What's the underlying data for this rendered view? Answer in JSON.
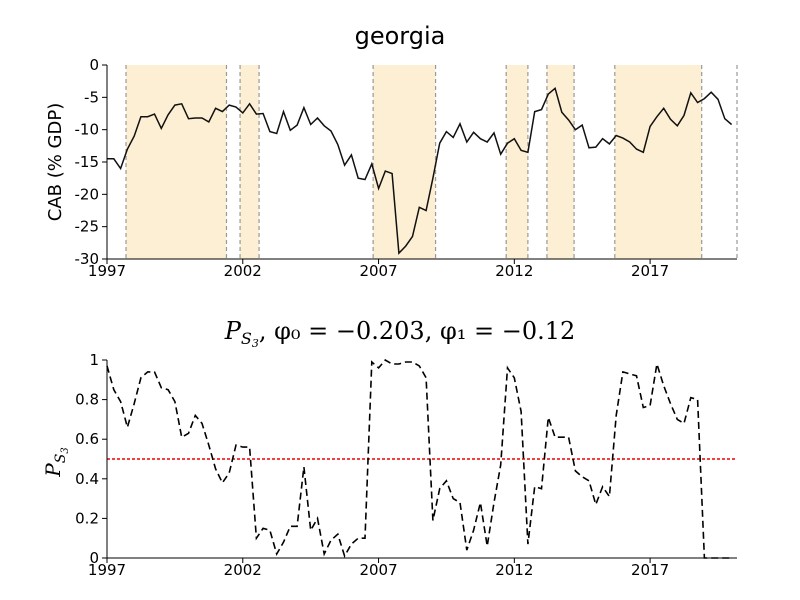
{
  "charts": [
    {
      "title": "georgia",
      "ylabel": "CAB (% GDP)",
      "type": "line",
      "xlim": [
        1997.0,
        2020.2
      ],
      "ylim": [
        -30,
        0
      ],
      "xticks": [
        1997,
        2002,
        2007,
        2012,
        2017
      ],
      "yticks": [
        0,
        -5,
        -10,
        -15,
        -20,
        -25,
        -30
      ],
      "line_color": "#111111",
      "shade_color": "#fdefd3",
      "shaded_regions": [
        [
          1997.7,
          2001.4
        ],
        [
          2001.9,
          2002.6
        ],
        [
          2006.8,
          2009.1
        ],
        [
          2011.7,
          2012.5
        ],
        [
          2013.2,
          2014.2
        ],
        [
          2015.7,
          2018.9
        ]
      ],
      "series": [
        {
          "x": [
            1997.0,
            1997.25,
            1997.5,
            1997.75,
            1998.0,
            1998.25,
            1998.5,
            1998.75,
            1999.0,
            1999.25,
            1999.5,
            1999.75,
            2000.0,
            2000.25,
            2000.5,
            2000.75,
            2001.0,
            2001.25,
            2001.5,
            2001.75,
            2002.0,
            2002.25,
            2002.5,
            2002.75,
            2003.0,
            2003.25,
            2003.5,
            2003.75,
            2004.0,
            2004.25,
            2004.5,
            2004.75,
            2005.0,
            2005.25,
            2005.5,
            2005.75,
            2006.0,
            2006.25,
            2006.5,
            2006.75,
            2007.0,
            2007.25,
            2007.5,
            2007.75,
            2008.0,
            2008.25,
            2008.5,
            2008.75,
            2009.0,
            2009.25,
            2009.5,
            2009.75,
            2010.0,
            2010.25,
            2010.5,
            2010.75,
            2011.0,
            2011.25,
            2011.5,
            2011.75,
            2012.0,
            2012.25,
            2012.5,
            2012.75,
            2013.0,
            2013.25,
            2013.5,
            2013.75,
            2014.0,
            2014.25,
            2014.5,
            2014.75,
            2015.0,
            2015.25,
            2015.5,
            2015.75,
            2016.0,
            2016.25,
            2016.5,
            2016.75,
            2017.0,
            2017.25,
            2017.5,
            2017.75,
            2018.0,
            2018.25,
            2018.5,
            2018.75,
            2019.0,
            2019.25,
            2019.5,
            2019.75,
            2020.0
          ],
          "y": [
            -14.5,
            -14.5,
            -16.0,
            -13.0,
            -11.0,
            -8.0,
            -8.0,
            -7.6,
            -9.8,
            -7.7,
            -6.2,
            -6.0,
            -8.3,
            -8.2,
            -8.2,
            -8.8,
            -6.7,
            -7.2,
            -6.2,
            -6.5,
            -7.4,
            -6.0,
            -7.6,
            -7.5,
            -10.3,
            -10.6,
            -7.2,
            -10.1,
            -9.3,
            -6.6,
            -9.2,
            -8.2,
            -9.4,
            -10.2,
            -12.3,
            -15.5,
            -13.9,
            -17.5,
            -17.7,
            -15.3,
            -19.1,
            -16.4,
            -16.8,
            -29.1,
            -28.0,
            -26.5,
            -22.0,
            -22.5,
            -17.5,
            -12.1,
            -10.3,
            -11.2,
            -9.1,
            -11.9,
            -10.4,
            -11.4,
            -11.9,
            -10.5,
            -13.8,
            -12.1,
            -11.4,
            -13.2,
            -13.5,
            -7.2,
            -6.9,
            -4.5,
            -3.6,
            -7.3,
            -8.5,
            -10.0,
            -9.3,
            -12.8,
            -12.7,
            -11.4,
            -12.2,
            -10.9,
            -11.3,
            -11.9,
            -13.0,
            -13.5,
            -9.5,
            -8.0,
            -6.7,
            -8.4,
            -9.4,
            -7.8,
            -4.3,
            -5.8,
            -5.2,
            -4.2,
            -5.3,
            -8.3,
            -9.2
          ]
        }
      ]
    },
    {
      "title_symbol": "P",
      "title_sub": "S",
      "title_subsub": "3",
      "title_rest": ", φ₀ = −0.203, φ₁ = −0.12",
      "ylabel_symbol": "P",
      "ylabel_sub": "S",
      "ylabel_subsub": "3",
      "type": "line",
      "xlim": [
        1997.0,
        2020.2
      ],
      "ylim": [
        0,
        1
      ],
      "xticks": [
        1997,
        2002,
        2007,
        2012,
        2017
      ],
      "yticks": [
        0,
        0.2,
        0.4,
        0.6,
        0.8,
        1
      ],
      "threshold": 0.5,
      "threshold_color": "#ee0000",
      "line_color": "#000000",
      "series": [
        {
          "x": [
            1997.0,
            1997.25,
            1997.5,
            1997.75,
            1998.0,
            1998.25,
            1998.5,
            1998.75,
            1999.0,
            1999.25,
            1999.5,
            1999.75,
            2000.0,
            2000.25,
            2000.5,
            2000.75,
            2001.0,
            2001.25,
            2001.5,
            2001.75,
            2002.0,
            2002.25,
            2002.5,
            2002.75,
            2003.0,
            2003.25,
            2003.5,
            2003.75,
            2004.0,
            2004.25,
            2004.5,
            2004.75,
            2005.0,
            2005.25,
            2005.5,
            2005.75,
            2006.0,
            2006.25,
            2006.5,
            2006.75,
            2007.0,
            2007.25,
            2007.5,
            2007.75,
            2008.0,
            2008.25,
            2008.5,
            2008.75,
            2009.0,
            2009.25,
            2009.5,
            2009.75,
            2010.0,
            2010.25,
            2010.5,
            2010.75,
            2011.0,
            2011.25,
            2011.5,
            2011.75,
            2012.0,
            2012.25,
            2012.5,
            2012.75,
            2013.0,
            2013.25,
            2013.5,
            2013.75,
            2014.0,
            2014.25,
            2014.5,
            2014.75,
            2015.0,
            2015.25,
            2015.5,
            2015.75,
            2016.0,
            2016.25,
            2016.5,
            2016.75,
            2017.0,
            2017.25,
            2017.5,
            2017.75,
            2018.0,
            2018.25,
            2018.5,
            2018.75,
            2019.0,
            2019.25,
            2019.5,
            2019.75,
            2020.0
          ],
          "y": [
            0.97,
            0.85,
            0.79,
            0.66,
            0.78,
            0.91,
            0.94,
            0.94,
            0.86,
            0.85,
            0.79,
            0.61,
            0.63,
            0.72,
            0.68,
            0.57,
            0.45,
            0.38,
            0.43,
            0.57,
            0.56,
            0.56,
            0.1,
            0.15,
            0.14,
            0.02,
            0.08,
            0.16,
            0.16,
            0.46,
            0.14,
            0.2,
            0.02,
            0.09,
            0.12,
            0.01,
            0.07,
            0.1,
            0.1,
            0.99,
            0.96,
            1.0,
            0.98,
            0.98,
            0.99,
            0.99,
            0.97,
            0.91,
            0.19,
            0.35,
            0.39,
            0.3,
            0.28,
            0.04,
            0.14,
            0.28,
            0.06,
            0.28,
            0.47,
            0.96,
            0.91,
            0.74,
            0.07,
            0.36,
            0.35,
            0.71,
            0.61,
            0.61,
            0.61,
            0.44,
            0.41,
            0.39,
            0.27,
            0.36,
            0.31,
            0.72,
            0.94,
            0.93,
            0.92,
            0.76,
            0.77,
            0.98,
            0.87,
            0.78,
            0.7,
            0.68,
            0.81,
            0.8,
            0.0,
            0.0,
            0.0,
            0.0,
            0.0
          ]
        }
      ]
    }
  ]
}
